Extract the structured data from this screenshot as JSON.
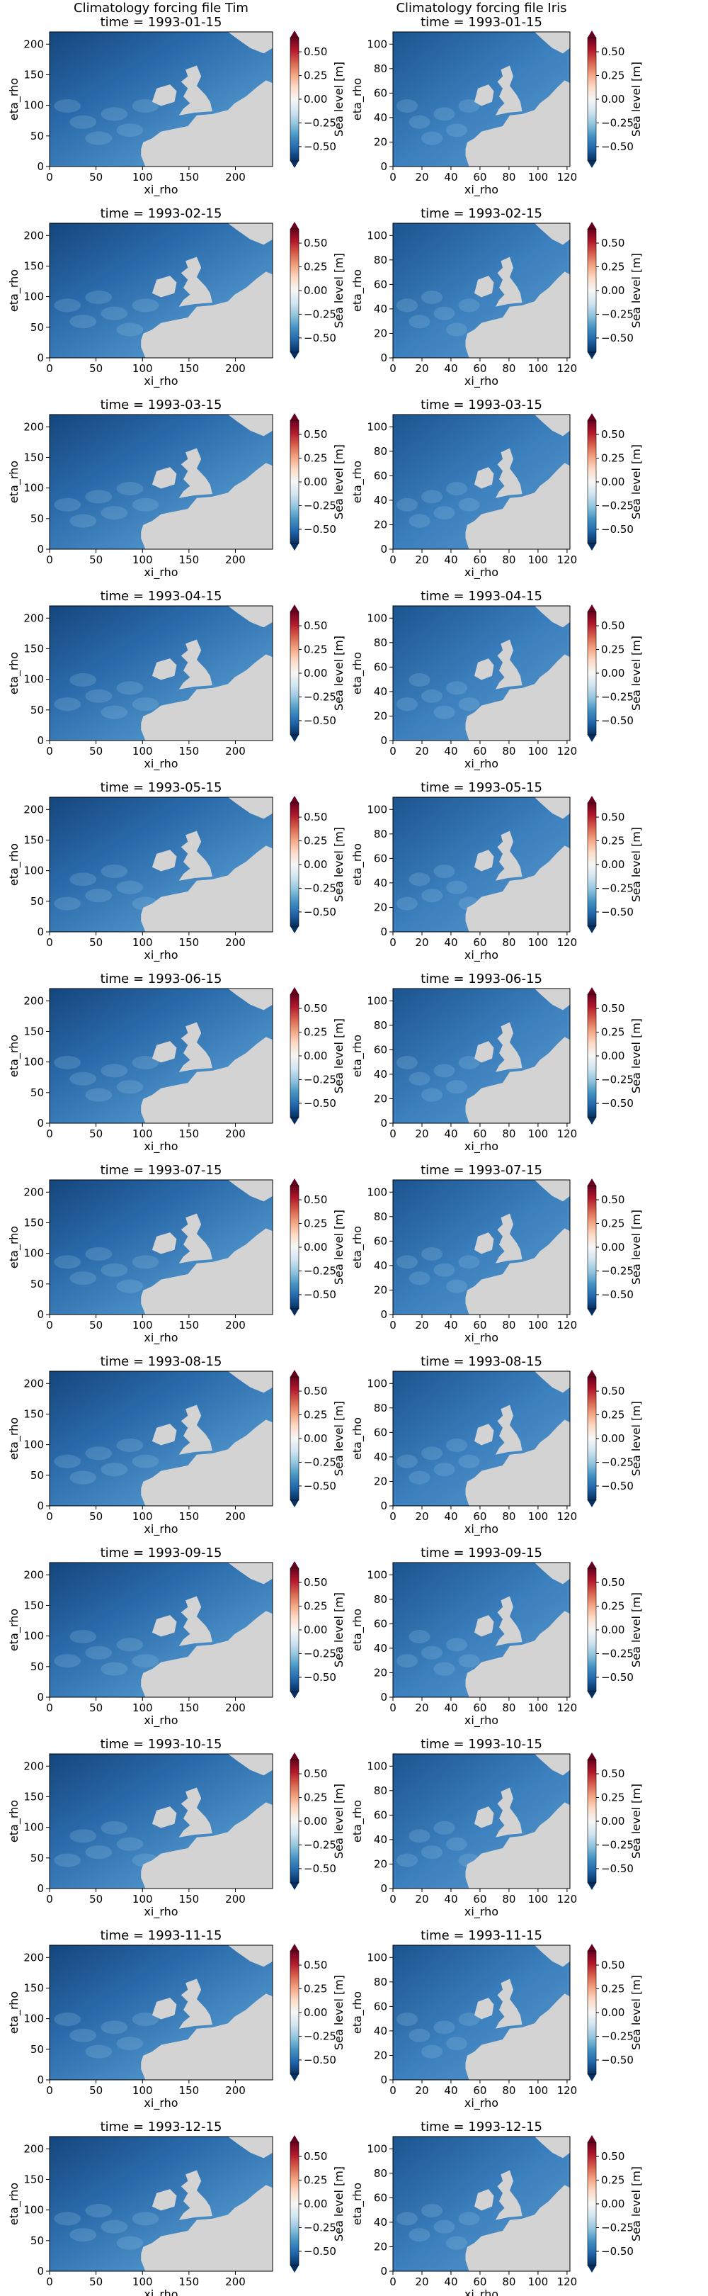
{
  "columns": [
    {
      "title": "Climatology forcing file Tim",
      "xlim": [
        0,
        240
      ],
      "ylim": [
        0,
        220
      ],
      "xticks": [
        0,
        50,
        100,
        150,
        200
      ],
      "yticks": [
        0,
        50,
        100,
        150,
        200
      ]
    },
    {
      "title": "Climatology forcing file Iris",
      "xlim": [
        0,
        122
      ],
      "ylim": [
        0,
        110
      ],
      "xticks": [
        0,
        20,
        40,
        60,
        80,
        100,
        120
      ],
      "yticks": [
        0,
        20,
        40,
        60,
        80,
        100
      ]
    }
  ],
  "colors": {
    "land": "#d3d3d3",
    "colormap": "RdBu_r"
  },
  "chart_data": [
    {
      "type": "heatmap",
      "source": "Tim",
      "time": "1993-01-15",
      "title": "time =  1993-01-15",
      "xlabel": "xi_rho",
      "ylabel": "eta_rho",
      "colorbar": {
        "label": "Sea level [m]",
        "range": [
          -0.65,
          0.65
        ],
        "ticks": [
          "0.50",
          "0.25",
          "0.00",
          "−0.25",
          "−0.50"
        ],
        "extend": "both"
      }
    },
    {
      "type": "heatmap",
      "source": "Iris",
      "time": "1993-01-15",
      "title": "time =  1993-01-15",
      "xlabel": "xi_rho",
      "ylabel": "eta_rho",
      "colorbar": {
        "label": "Sea level [m]",
        "range": [
          -0.65,
          0.65
        ],
        "ticks": [
          "0.50",
          "0.25",
          "0.00",
          "−0.25",
          "−0.50"
        ],
        "extend": "both"
      }
    },
    {
      "type": "heatmap",
      "source": "Tim",
      "time": "1993-02-15",
      "title": "time = 1993-02-15",
      "xlabel": "xi_rho",
      "ylabel": "eta_rho",
      "colorbar": {
        "label": "Sea level [m]",
        "range": [
          -0.65,
          0.65
        ],
        "ticks": [
          "0.50",
          "0.25",
          "0.00",
          "−0.25",
          "−0.50"
        ],
        "extend": "both"
      }
    },
    {
      "type": "heatmap",
      "source": "Iris",
      "time": "1993-02-15",
      "title": "time = 1993-02-15",
      "xlabel": "xi_rho",
      "ylabel": "eta_rho",
      "colorbar": {
        "label": "Sea level [m]",
        "range": [
          -0.65,
          0.65
        ],
        "ticks": [
          "0.50",
          "0.25",
          "0.00",
          "−0.25",
          "−0.50"
        ],
        "extend": "both"
      }
    },
    {
      "type": "heatmap",
      "source": "Tim",
      "time": "1993-03-15",
      "title": "time = 1993-03-15",
      "xlabel": "xi_rho",
      "ylabel": "eta_rho",
      "colorbar": {
        "label": "Sea level [m]",
        "range": [
          -0.65,
          0.65
        ],
        "ticks": [
          "0.50",
          "0.25",
          "0.00",
          "−0.25",
          "−0.50"
        ],
        "extend": "both"
      }
    },
    {
      "type": "heatmap",
      "source": "Iris",
      "time": "1993-03-15",
      "title": "time = 1993-03-15",
      "xlabel": "xi_rho",
      "ylabel": "eta_rho",
      "colorbar": {
        "label": "Sea level [m]",
        "range": [
          -0.65,
          0.65
        ],
        "ticks": [
          "0.50",
          "0.25",
          "0.00",
          "−0.25",
          "−0.50"
        ],
        "extend": "both"
      }
    },
    {
      "type": "heatmap",
      "source": "Tim",
      "time": "1993-04-15",
      "title": "time = 1993-04-15",
      "xlabel": "xi_rho",
      "ylabel": "eta_rho",
      "colorbar": {
        "label": "Sea level [m]",
        "range": [
          -0.65,
          0.65
        ],
        "ticks": [
          "0.50",
          "0.25",
          "0.00",
          "−0.25",
          "−0.50"
        ],
        "extend": "both"
      }
    },
    {
      "type": "heatmap",
      "source": "Iris",
      "time": "1993-04-15",
      "title": "time = 1993-04-15",
      "xlabel": "xi_rho",
      "ylabel": "eta_rho",
      "colorbar": {
        "label": "Sea level [m]",
        "range": [
          -0.65,
          0.65
        ],
        "ticks": [
          "0.50",
          "0.25",
          "0.00",
          "−0.25",
          "−0.50"
        ],
        "extend": "both"
      }
    },
    {
      "type": "heatmap",
      "source": "Tim",
      "time": "1993-05-15",
      "title": "time = 1993-05-15",
      "xlabel": "xi_rho",
      "ylabel": "eta_rho",
      "colorbar": {
        "label": "Sea level [m]",
        "range": [
          -0.65,
          0.65
        ],
        "ticks": [
          "0.50",
          "0.25",
          "0.00",
          "−0.25",
          "−0.50"
        ],
        "extend": "both"
      }
    },
    {
      "type": "heatmap",
      "source": "Iris",
      "time": "1993-05-15",
      "title": "time = 1993-05-15",
      "xlabel": "xi_rho",
      "ylabel": "eta_rho",
      "colorbar": {
        "label": "Sea level [m]",
        "range": [
          -0.65,
          0.65
        ],
        "ticks": [
          "0.50",
          "0.25",
          "0.00",
          "−0.25",
          "−0.50"
        ],
        "extend": "both"
      }
    },
    {
      "type": "heatmap",
      "source": "Tim",
      "time": "1993-06-15",
      "title": "time = 1993-06-15",
      "xlabel": "xi_rho",
      "ylabel": "eta_rho",
      "colorbar": {
        "label": "Sea level [m]",
        "range": [
          -0.65,
          0.65
        ],
        "ticks": [
          "0.50",
          "0.25",
          "0.00",
          "−0.25",
          "−0.50"
        ],
        "extend": "both"
      }
    },
    {
      "type": "heatmap",
      "source": "Iris",
      "time": "1993-06-15",
      "title": "time = 1993-06-15",
      "xlabel": "xi_rho",
      "ylabel": "eta_rho",
      "colorbar": {
        "label": "Sea level [m]",
        "range": [
          -0.65,
          0.65
        ],
        "ticks": [
          "0.50",
          "0.25",
          "0.00",
          "−0.25",
          "−0.50"
        ],
        "extend": "both"
      }
    },
    {
      "type": "heatmap",
      "source": "Tim",
      "time": "1993-07-15",
      "title": "time = 1993-07-15",
      "xlabel": "xi_rho",
      "ylabel": "eta_rho",
      "colorbar": {
        "label": "Sea level [m]",
        "range": [
          -0.65,
          0.65
        ],
        "ticks": [
          "0.50",
          "0.25",
          "0.00",
          "−0.25",
          "−0.50"
        ],
        "extend": "both"
      }
    },
    {
      "type": "heatmap",
      "source": "Iris",
      "time": "1993-07-15",
      "title": "time = 1993-07-15",
      "xlabel": "xi_rho",
      "ylabel": "eta_rho",
      "colorbar": {
        "label": "Sea level [m]",
        "range": [
          -0.65,
          0.65
        ],
        "ticks": [
          "0.50",
          "0.25",
          "0.00",
          "−0.25",
          "−0.50"
        ],
        "extend": "both"
      }
    },
    {
      "type": "heatmap",
      "source": "Tim",
      "time": "1993-08-15",
      "title": "time = 1993-08-15",
      "xlabel": "xi_rho",
      "ylabel": "eta_rho",
      "colorbar": {
        "label": "Sea level [m]",
        "range": [
          -0.65,
          0.65
        ],
        "ticks": [
          "0.50",
          "0.25",
          "0.00",
          "−0.25",
          "−0.50"
        ],
        "extend": "both"
      }
    },
    {
      "type": "heatmap",
      "source": "Iris",
      "time": "1993-08-15",
      "title": "time = 1993-08-15",
      "xlabel": "xi_rho",
      "ylabel": "eta_rho",
      "colorbar": {
        "label": "Sea level [m]",
        "range": [
          -0.65,
          0.65
        ],
        "ticks": [
          "0.50",
          "0.25",
          "0.00",
          "−0.25",
          "−0.50"
        ],
        "extend": "both"
      }
    },
    {
      "type": "heatmap",
      "source": "Tim",
      "time": "1993-09-15",
      "title": "time = 1993-09-15",
      "xlabel": "xi_rho",
      "ylabel": "eta_rho",
      "colorbar": {
        "label": "Sea level [m]",
        "range": [
          -0.65,
          0.65
        ],
        "ticks": [
          "0.50",
          "0.25",
          "0.00",
          "−0.25",
          "−0.50"
        ],
        "extend": "both"
      }
    },
    {
      "type": "heatmap",
      "source": "Iris",
      "time": "1993-09-15",
      "title": "time = 1993-09-15",
      "xlabel": "xi_rho",
      "ylabel": "eta_rho",
      "colorbar": {
        "label": "Sea level [m]",
        "range": [
          -0.65,
          0.65
        ],
        "ticks": [
          "0.50",
          "0.25",
          "0.00",
          "−0.25",
          "−0.50"
        ],
        "extend": "both"
      }
    },
    {
      "type": "heatmap",
      "source": "Tim",
      "time": "1993-10-15",
      "title": "time = 1993-10-15",
      "xlabel": "xi_rho",
      "ylabel": "eta_rho",
      "colorbar": {
        "label": "Sea level [m]",
        "range": [
          -0.65,
          0.65
        ],
        "ticks": [
          "0.50",
          "0.25",
          "0.00",
          "−0.25",
          "−0.50"
        ],
        "extend": "both"
      }
    },
    {
      "type": "heatmap",
      "source": "Iris",
      "time": "1993-10-15",
      "title": "time = 1993-10-15",
      "xlabel": "xi_rho",
      "ylabel": "eta_rho",
      "colorbar": {
        "label": "Sea level [m]",
        "range": [
          -0.65,
          0.65
        ],
        "ticks": [
          "0.50",
          "0.25",
          "0.00",
          "−0.25",
          "−0.50"
        ],
        "extend": "both"
      }
    },
    {
      "type": "heatmap",
      "source": "Tim",
      "time": "1993-11-15",
      "title": "time = 1993-11-15",
      "xlabel": "xi_rho",
      "ylabel": "eta_rho",
      "colorbar": {
        "label": "Sea level [m]",
        "range": [
          -0.65,
          0.65
        ],
        "ticks": [
          "0.50",
          "0.25",
          "0.00",
          "−0.25",
          "−0.50"
        ],
        "extend": "both"
      }
    },
    {
      "type": "heatmap",
      "source": "Iris",
      "time": "1993-11-15",
      "title": "time = 1993-11-15",
      "xlabel": "xi_rho",
      "ylabel": "eta_rho",
      "colorbar": {
        "label": "Sea level [m]",
        "range": [
          -0.65,
          0.65
        ],
        "ticks": [
          "0.50",
          "0.25",
          "0.00",
          "−0.25",
          "−0.50"
        ],
        "extend": "both"
      }
    },
    {
      "type": "heatmap",
      "source": "Tim",
      "time": "1993-12-15",
      "title": "time = 1993-12-15",
      "xlabel": "xi_rho",
      "ylabel": "eta_rho",
      "colorbar": {
        "label": "Sea level [m]",
        "range": [
          -0.65,
          0.65
        ],
        "ticks": [
          "0.50",
          "0.25",
          "0.00",
          "−0.25",
          "−0.50"
        ],
        "extend": "both"
      }
    },
    {
      "type": "heatmap",
      "source": "Iris",
      "time": "1993-12-15",
      "title": "time = 1993-12-15",
      "xlabel": "xi_rho",
      "ylabel": "eta_rho",
      "colorbar": {
        "label": "Sea level [m]",
        "range": [
          -0.65,
          0.65
        ],
        "ticks": [
          "0.50",
          "0.25",
          "0.00",
          "−0.25",
          "−0.50"
        ],
        "extend": "both"
      }
    }
  ]
}
